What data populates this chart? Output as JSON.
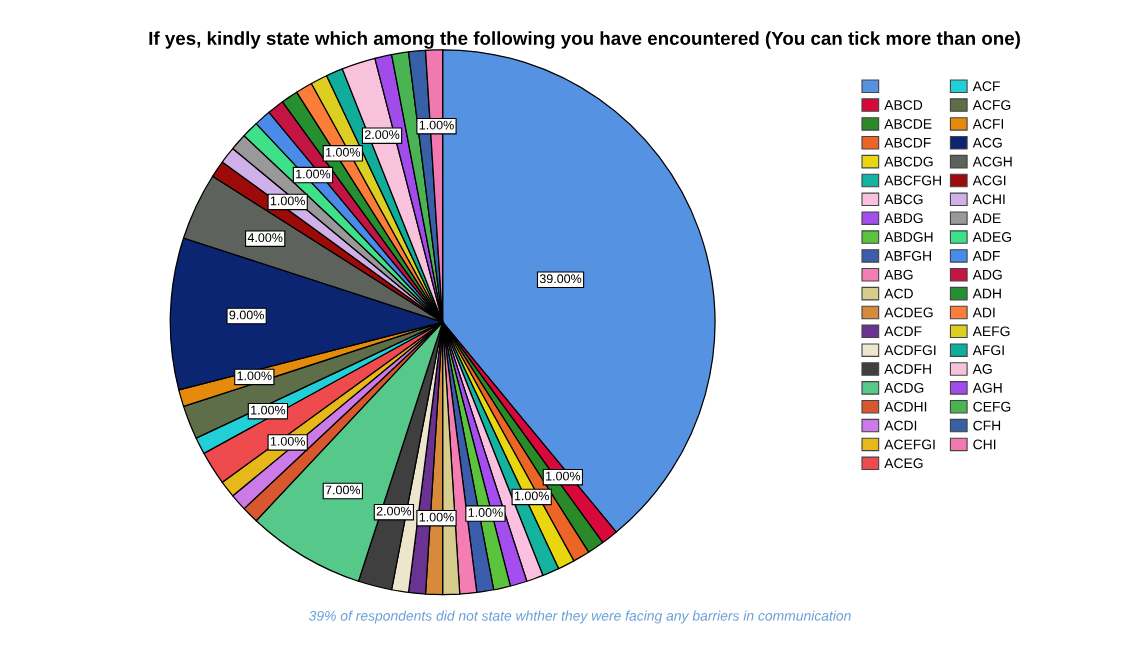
{
  "chart_data": {
    "type": "pie",
    "title": "If yes, kindly state which among the following you have encountered (You can tick more than one)",
    "categories": [
      null,
      "ABCD",
      "ABCDE",
      "ABCDF",
      "ABCDG",
      "ABCFGH",
      "ABCG",
      "ABDG",
      "ABDGH",
      "ABFGH",
      "ABG",
      "ACD",
      "ACDEG",
      "ACDF",
      "ACDFGI",
      "ACDFH",
      "ACDG",
      "ACDHI",
      "ACDI",
      "ACEFGI",
      "ACEG",
      "ACF",
      "ACFG",
      "ACFI",
      "ACG",
      "ACGH",
      "ACGI",
      "ACHI",
      "ADE",
      "ADEG",
      "ADF",
      "ADG",
      "ADH",
      "ADI",
      "AEFG",
      "AFGI",
      "AG",
      "AGH",
      "CEFG",
      "CFH",
      "CHI"
    ],
    "values": [
      39,
      1,
      1,
      1,
      1,
      1,
      1,
      1,
      1,
      1,
      1,
      1,
      1,
      1,
      1,
      2,
      7,
      1,
      1,
      1,
      2,
      1,
      2,
      1,
      9,
      4,
      1,
      1,
      1,
      1,
      1,
      1,
      1,
      1,
      1,
      1,
      2,
      1,
      1,
      1,
      1
    ],
    "colors": [
      "#5592e2",
      "#d9083a",
      "#2a8a2a",
      "#ec6426",
      "#e8d70f",
      "#13b3a0",
      "#fbbfe0",
      "#a54ef0",
      "#5cc43c",
      "#3b5dab",
      "#f47eb3",
      "#d6cd8c",
      "#d68a3a",
      "#6a3391",
      "#ede6cc",
      "#3f3f3f",
      "#56c98a",
      "#d8572e",
      "#cc7ae8",
      "#e6b81a",
      "#ef4a4e",
      "#22cfd6",
      "#5d6e48",
      "#e68a0c",
      "#0b2573",
      "#5e625c",
      "#9c0a0a",
      "#cfb0e8",
      "#999999",
      "#3ee08a",
      "#4a8ae8",
      "#c41444",
      "#268f30",
      "#fc7c3a",
      "#dccf22",
      "#10ae9a",
      "#f8c2dc",
      "#a04bea",
      "#4ab452",
      "#3860a6",
      "#f07ab0"
    ],
    "value_labels": [
      "39.00%",
      "1.00%",
      null,
      null,
      "1.00%",
      null,
      null,
      null,
      "1.00%",
      null,
      null,
      null,
      "1.00%",
      null,
      null,
      "2.00%",
      "7.00%",
      null,
      null,
      "1.00%",
      null,
      "1.00%",
      null,
      "1.00%",
      "9.00%",
      "4.00%",
      null,
      "1.00%",
      null,
      null,
      "1.00%",
      null,
      null,
      "1.00%",
      null,
      null,
      "2.00%",
      null,
      null,
      null,
      "1.00%"
    ],
    "legend": "right",
    "annotations": [
      "39% of respondents did not state whther they were facing any barriers in communication"
    ]
  }
}
